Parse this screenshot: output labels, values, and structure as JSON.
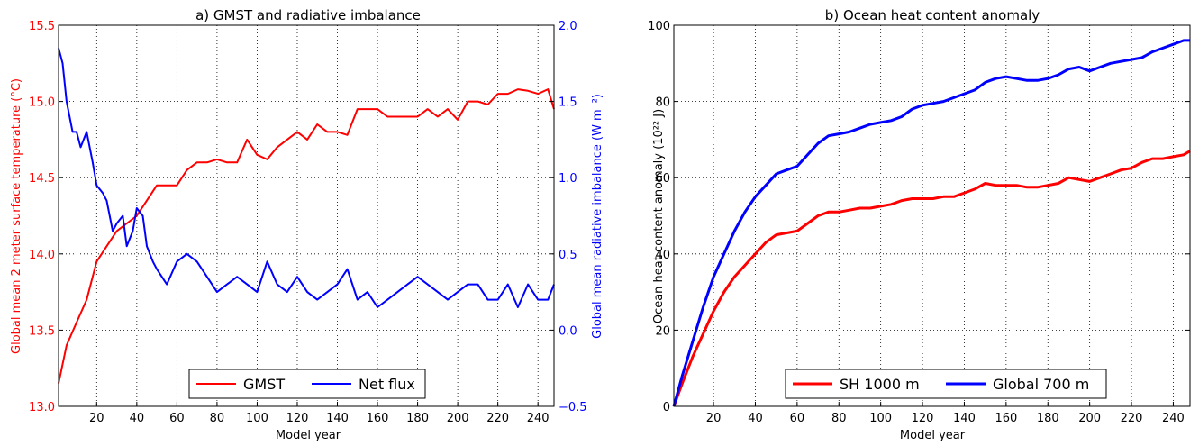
{
  "chart_data": [
    {
      "type": "line",
      "title": "a) GMST and radiative imbalance",
      "xlabel": "Model year",
      "ylabel_left": "Global mean 2 meter surface temperature (°C)",
      "ylabel_right": "Global mean radiative imbalance (W m⁻²)",
      "xlim": [
        1,
        248
      ],
      "ylim_left": [
        13.0,
        15.5
      ],
      "ylim_right": [
        -0.5,
        2.0
      ],
      "x_ticks": [
        "20",
        "40",
        "60",
        "80",
        "100",
        "120",
        "140",
        "160",
        "180",
        "200",
        "220",
        "240"
      ],
      "y_ticks_left": [
        "13.0",
        "13.5",
        "14.0",
        "14.5",
        "15.0",
        "15.5"
      ],
      "y_ticks_right": [
        "−0.5",
        "0.0",
        "0.5",
        "1.0",
        "1.5",
        "2.0"
      ],
      "grid": true,
      "legend_position": "bottom-center",
      "colors": {
        "left_axis": "#ff0000",
        "right_axis": "#0000ff"
      },
      "series": [
        {
          "name": "GMST",
          "axis": "left",
          "color": "#ff0000",
          "x": [
            1,
            5,
            10,
            15,
            20,
            25,
            30,
            35,
            40,
            45,
            50,
            55,
            60,
            65,
            70,
            75,
            80,
            85,
            90,
            95,
            100,
            105,
            110,
            115,
            120,
            125,
            130,
            135,
            140,
            145,
            150,
            155,
            160,
            165,
            170,
            175,
            180,
            185,
            190,
            195,
            200,
            205,
            210,
            215,
            220,
            225,
            230,
            235,
            240,
            245,
            248
          ],
          "y": [
            13.15,
            13.4,
            13.55,
            13.7,
            13.95,
            14.05,
            14.15,
            14.2,
            14.25,
            14.35,
            14.45,
            14.45,
            14.45,
            14.55,
            14.6,
            14.6,
            14.62,
            14.6,
            14.6,
            14.75,
            14.65,
            14.62,
            14.7,
            14.75,
            14.8,
            14.75,
            14.85,
            14.8,
            14.8,
            14.78,
            14.95,
            14.95,
            14.95,
            14.9,
            14.9,
            14.9,
            14.9,
            14.95,
            14.9,
            14.95,
            14.88,
            15.0,
            15.0,
            14.98,
            15.05,
            15.05,
            15.08,
            15.07,
            15.05,
            15.08,
            14.95
          ]
        },
        {
          "name": "Net flux",
          "axis": "right",
          "color": "#0000ff",
          "x": [
            1,
            3,
            5,
            8,
            10,
            12,
            15,
            18,
            20,
            23,
            25,
            28,
            30,
            33,
            35,
            38,
            40,
            43,
            45,
            48,
            50,
            55,
            60,
            65,
            70,
            75,
            80,
            85,
            90,
            95,
            100,
            105,
            110,
            115,
            120,
            125,
            130,
            135,
            140,
            145,
            150,
            155,
            160,
            165,
            170,
            175,
            180,
            185,
            190,
            195,
            200,
            205,
            210,
            215,
            220,
            225,
            230,
            235,
            240,
            245,
            248
          ],
          "y": [
            1.85,
            1.75,
            1.5,
            1.3,
            1.3,
            1.2,
            1.3,
            1.1,
            0.95,
            0.9,
            0.85,
            0.65,
            0.7,
            0.75,
            0.55,
            0.65,
            0.8,
            0.75,
            0.55,
            0.45,
            0.4,
            0.3,
            0.45,
            0.5,
            0.45,
            0.35,
            0.25,
            0.3,
            0.35,
            0.3,
            0.25,
            0.45,
            0.3,
            0.25,
            0.35,
            0.25,
            0.2,
            0.25,
            0.3,
            0.4,
            0.2,
            0.25,
            0.15,
            0.2,
            0.25,
            0.3,
            0.35,
            0.3,
            0.25,
            0.2,
            0.25,
            0.3,
            0.3,
            0.2,
            0.2,
            0.3,
            0.15,
            0.3,
            0.2,
            0.2,
            0.3
          ]
        }
      ]
    },
    {
      "type": "line",
      "title": "b) Ocean heat content anomaly",
      "xlabel": "Model year",
      "ylabel": "Ocean heat content anomaly (10²² J)",
      "xlim": [
        1,
        248
      ],
      "ylim": [
        0,
        100
      ],
      "x_ticks": [
        "20",
        "40",
        "60",
        "80",
        "100",
        "120",
        "140",
        "160",
        "180",
        "200",
        "220",
        "240"
      ],
      "y_ticks": [
        "0",
        "20",
        "40",
        "60",
        "80",
        "100"
      ],
      "grid": true,
      "legend_position": "bottom-center",
      "series": [
        {
          "name": "SH 1000 m",
          "color": "#ff0000",
          "x": [
            1,
            5,
            10,
            15,
            20,
            25,
            30,
            35,
            40,
            45,
            50,
            55,
            60,
            65,
            70,
            75,
            80,
            85,
            90,
            95,
            100,
            105,
            110,
            115,
            120,
            125,
            130,
            135,
            140,
            145,
            150,
            155,
            160,
            165,
            170,
            175,
            180,
            185,
            190,
            195,
            200,
            205,
            210,
            215,
            220,
            225,
            230,
            235,
            240,
            245,
            248
          ],
          "y": [
            0,
            6,
            13,
            19,
            25,
            30,
            34,
            37,
            40,
            43,
            45,
            45.5,
            46,
            48,
            50,
            51,
            51,
            51.5,
            52,
            52,
            52.5,
            53,
            54,
            54.5,
            54.5,
            54.5,
            55,
            55,
            56,
            57,
            58.5,
            58,
            58,
            58,
            57.5,
            57.5,
            58,
            58.5,
            60,
            59.5,
            59,
            60,
            61,
            62,
            62.5,
            64,
            65,
            65,
            65.5,
            66,
            67
          ]
        },
        {
          "name": "Global 700 m",
          "color": "#0000ff",
          "x": [
            1,
            5,
            10,
            15,
            20,
            25,
            30,
            35,
            40,
            45,
            50,
            55,
            60,
            65,
            70,
            75,
            80,
            85,
            90,
            95,
            100,
            105,
            110,
            115,
            120,
            125,
            130,
            135,
            140,
            145,
            150,
            155,
            160,
            165,
            170,
            175,
            180,
            185,
            190,
            195,
            200,
            205,
            210,
            215,
            220,
            225,
            230,
            235,
            240,
            245,
            248
          ],
          "y": [
            0,
            8,
            17,
            26,
            34,
            40,
            46,
            51,
            55,
            58,
            61,
            62,
            63,
            66,
            69,
            71,
            71.5,
            72,
            73,
            74,
            74.5,
            75,
            76,
            78,
            79,
            79.5,
            80,
            81,
            82,
            83,
            85,
            86,
            86.5,
            86,
            85.5,
            85.5,
            86,
            87,
            88.5,
            89,
            88,
            89,
            90,
            90.5,
            91,
            91.5,
            93,
            94,
            95,
            96,
            96
          ]
        }
      ]
    }
  ]
}
